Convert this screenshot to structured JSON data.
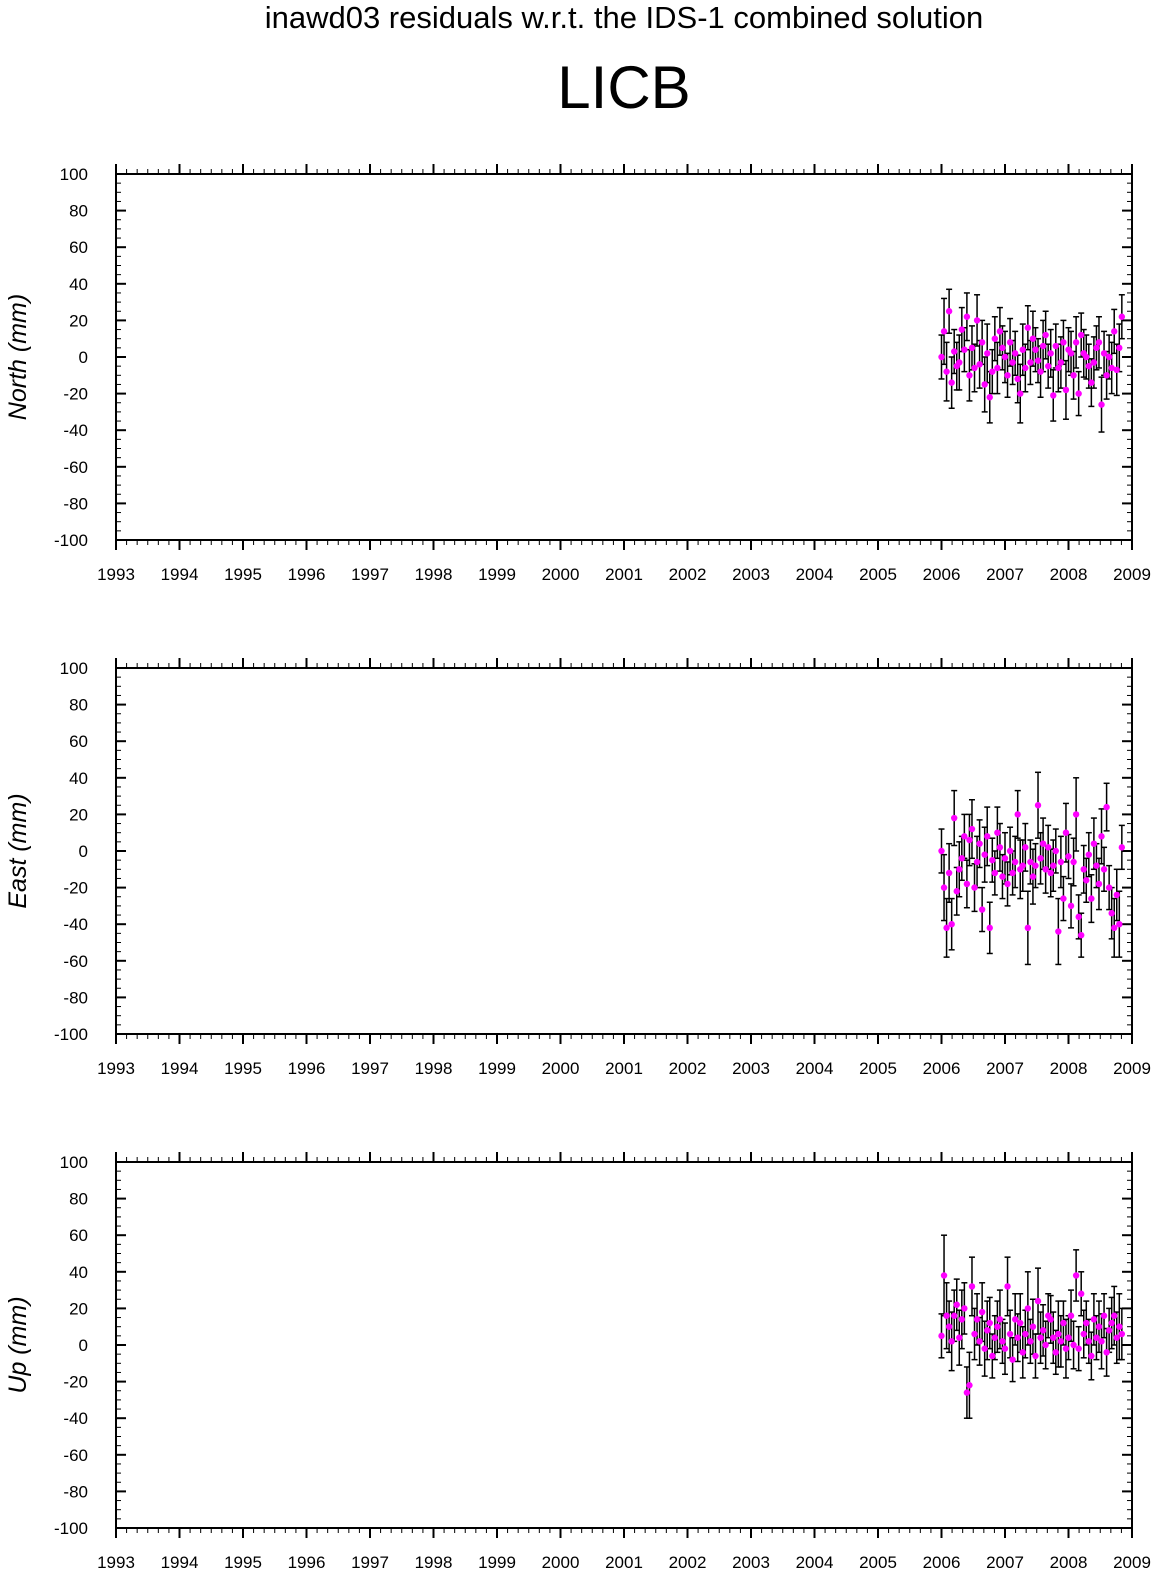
{
  "title": "inawd03 residuals w.r.t. the IDS-1 combined solution",
  "station": "LICB",
  "colors": {
    "axis": "#000000",
    "error_bar": "#000000",
    "point": "#ff00ff"
  },
  "chart_data": [
    {
      "type": "scatter",
      "title": "",
      "xlabel": "",
      "ylabel": "North (mm)",
      "xlim": [
        1993,
        2009
      ],
      "ylim": [
        -100,
        100
      ],
      "xticks": [
        "1993",
        "1994",
        "1995",
        "1996",
        "1997",
        "1998",
        "1999",
        "2000",
        "2001",
        "2002",
        "2003",
        "2004",
        "2005",
        "2006",
        "2007",
        "2008",
        "2009"
      ],
      "yticks": [
        "100",
        "80",
        "60",
        "40",
        "20",
        "0",
        "-20",
        "-40",
        "-60",
        "-80",
        "-100"
      ],
      "error_bars": true,
      "series": [
        {
          "x": [
            2006.0,
            2006.04,
            2006.08,
            2006.12,
            2006.16,
            2006.2,
            2006.24,
            2006.28,
            2006.32,
            2006.36,
            2006.4,
            2006.44,
            2006.48,
            2006.52,
            2006.56,
            2006.6,
            2006.64,
            2006.68,
            2006.72,
            2006.76,
            2006.8,
            2006.84,
            2006.88,
            2006.92,
            2006.96,
            2007.0,
            2007.04,
            2007.08,
            2007.12,
            2007.16,
            2007.2,
            2007.24,
            2007.28,
            2007.32,
            2007.36,
            2007.4,
            2007.44,
            2007.48,
            2007.52,
            2007.56,
            2007.6,
            2007.64,
            2007.68,
            2007.72,
            2007.76,
            2007.8,
            2007.84,
            2007.88,
            2007.92,
            2007.96,
            2008.0,
            2008.04,
            2008.08,
            2008.12,
            2008.16,
            2008.2,
            2008.24,
            2008.28,
            2008.32,
            2008.36,
            2008.4,
            2008.44,
            2008.48,
            2008.52,
            2008.56,
            2008.6,
            2008.64,
            2008.68,
            2008.72,
            2008.76,
            2008.8,
            2008.84
          ],
          "y": [
            0,
            14,
            -8,
            25,
            -14,
            3,
            -5,
            -3,
            15,
            4,
            22,
            -10,
            5,
            -6,
            20,
            -4,
            8,
            -15,
            2,
            -22,
            -8,
            10,
            -6,
            14,
            5,
            0,
            -10,
            8,
            -3,
            2,
            -12,
            -20,
            4,
            -6,
            16,
            -3,
            10,
            4,
            -2,
            -8,
            6,
            12,
            -5,
            2,
            -21,
            6,
            -6,
            -3,
            8,
            -18,
            4,
            2,
            -10,
            8,
            -20,
            12,
            2,
            0,
            -5,
            -14,
            -3,
            5,
            8,
            -26,
            2,
            -10,
            0,
            -6,
            14,
            -7,
            5,
            22
          ],
          "err": [
            12,
            18,
            16,
            12,
            14,
            12,
            13,
            15,
            12,
            12,
            13,
            14,
            12,
            13,
            14,
            13,
            12,
            15,
            16,
            14,
            12,
            12,
            14,
            13,
            12,
            14,
            12,
            13,
            12,
            12,
            13,
            16,
            14,
            13,
            12,
            12,
            15,
            12,
            12,
            14,
            14,
            13,
            12,
            13,
            14,
            12,
            13,
            14,
            12,
            16,
            12,
            12,
            13,
            14,
            12,
            12,
            13,
            12,
            12,
            13,
            14,
            12,
            14,
            15,
            12,
            13,
            12,
            14,
            12,
            14,
            13,
            12
          ]
        }
      ]
    },
    {
      "type": "scatter",
      "title": "",
      "xlabel": "",
      "ylabel": "East (mm)",
      "xlim": [
        1993,
        2009
      ],
      "ylim": [
        -100,
        100
      ],
      "xticks": [
        "1993",
        "1994",
        "1995",
        "1996",
        "1997",
        "1998",
        "1999",
        "2000",
        "2001",
        "2002",
        "2003",
        "2004",
        "2005",
        "2006",
        "2007",
        "2008",
        "2009"
      ],
      "yticks": [
        "100",
        "80",
        "60",
        "40",
        "20",
        "0",
        "-20",
        "-40",
        "-60",
        "-80",
        "-100"
      ],
      "error_bars": true,
      "series": [
        {
          "x": [
            2006.0,
            2006.04,
            2006.08,
            2006.12,
            2006.16,
            2006.2,
            2006.24,
            2006.28,
            2006.32,
            2006.36,
            2006.4,
            2006.44,
            2006.48,
            2006.52,
            2006.56,
            2006.6,
            2006.64,
            2006.68,
            2006.72,
            2006.76,
            2006.8,
            2006.84,
            2006.88,
            2006.92,
            2006.96,
            2007.0,
            2007.04,
            2007.08,
            2007.12,
            2007.16,
            2007.2,
            2007.24,
            2007.28,
            2007.32,
            2007.36,
            2007.4,
            2007.44,
            2007.48,
            2007.52,
            2007.56,
            2007.6,
            2007.64,
            2007.68,
            2007.72,
            2007.76,
            2007.8,
            2007.84,
            2007.88,
            2007.92,
            2007.96,
            2008.0,
            2008.04,
            2008.08,
            2008.12,
            2008.16,
            2008.2,
            2008.24,
            2008.28,
            2008.32,
            2008.36,
            2008.4,
            2008.44,
            2008.48,
            2008.52,
            2008.56,
            2008.6,
            2008.64,
            2008.68,
            2008.72,
            2008.76,
            2008.8,
            2008.84
          ],
          "y": [
            0,
            -20,
            -42,
            -12,
            -40,
            18,
            -22,
            -10,
            -4,
            8,
            -18,
            6,
            12,
            -20,
            -6,
            4,
            -32,
            -2,
            8,
            -42,
            -5,
            -12,
            10,
            2,
            -14,
            -4,
            -18,
            0,
            -12,
            -6,
            20,
            -10,
            -8,
            2,
            -42,
            -6,
            -14,
            -8,
            25,
            -4,
            4,
            -10,
            2,
            -12,
            -8,
            0,
            -44,
            -6,
            -26,
            10,
            -3,
            -30,
            -6,
            20,
            -36,
            -46,
            -10,
            -16,
            -2,
            -26,
            4,
            -8,
            -18,
            8,
            -10,
            24,
            -20,
            -34,
            -42,
            -24,
            -40,
            2
          ],
          "err": [
            12,
            18,
            16,
            16,
            14,
            15,
            13,
            15,
            12,
            12,
            13,
            14,
            16,
            13,
            14,
            13,
            12,
            15,
            16,
            14,
            12,
            12,
            14,
            13,
            12,
            14,
            12,
            13,
            12,
            14,
            13,
            16,
            14,
            13,
            20,
            12,
            15,
            12,
            18,
            14,
            14,
            13,
            12,
            13,
            14,
            12,
            18,
            14,
            12,
            16,
            12,
            12,
            13,
            20,
            12,
            12,
            13,
            12,
            12,
            13,
            14,
            12,
            14,
            15,
            12,
            13,
            12,
            14,
            16,
            14,
            18,
            12
          ]
        }
      ]
    },
    {
      "type": "scatter",
      "title": "",
      "xlabel": "",
      "ylabel": "Up (mm)",
      "xlim": [
        1993,
        2009
      ],
      "ylim": [
        -100,
        100
      ],
      "xticks": [
        "1993",
        "1994",
        "1995",
        "1996",
        "1997",
        "1998",
        "1999",
        "2000",
        "2001",
        "2002",
        "2003",
        "2004",
        "2005",
        "2006",
        "2007",
        "2008",
        "2009"
      ],
      "yticks": [
        "100",
        "80",
        "60",
        "40",
        "20",
        "0",
        "-20",
        "-40",
        "-60",
        "-80",
        "-100"
      ],
      "error_bars": true,
      "series": [
        {
          "x": [
            2006.0,
            2006.04,
            2006.08,
            2006.12,
            2006.16,
            2006.2,
            2006.24,
            2006.28,
            2006.32,
            2006.36,
            2006.4,
            2006.44,
            2006.48,
            2006.52,
            2006.56,
            2006.6,
            2006.64,
            2006.68,
            2006.72,
            2006.76,
            2006.8,
            2006.84,
            2006.88,
            2006.92,
            2006.96,
            2007.0,
            2007.04,
            2007.08,
            2007.12,
            2007.16,
            2007.2,
            2007.24,
            2007.28,
            2007.32,
            2007.36,
            2007.4,
            2007.44,
            2007.48,
            2007.52,
            2007.56,
            2007.6,
            2007.64,
            2007.68,
            2007.72,
            2007.76,
            2007.8,
            2007.84,
            2007.88,
            2007.92,
            2007.96,
            2008.0,
            2008.04,
            2008.08,
            2008.12,
            2008.16,
            2008.2,
            2008.24,
            2008.28,
            2008.32,
            2008.36,
            2008.4,
            2008.44,
            2008.48,
            2008.52,
            2008.56,
            2008.6,
            2008.64,
            2008.68,
            2008.72,
            2008.76,
            2008.8,
            2008.84
          ],
          "y": [
            5,
            38,
            16,
            10,
            2,
            16,
            22,
            4,
            14,
            20,
            -26,
            -22,
            32,
            6,
            14,
            2,
            18,
            -2,
            8,
            12,
            -6,
            4,
            10,
            14,
            2,
            -2,
            32,
            6,
            -8,
            14,
            4,
            12,
            -4,
            6,
            20,
            2,
            10,
            -6,
            24,
            4,
            8,
            0,
            16,
            14,
            4,
            -4,
            6,
            2,
            12,
            -2,
            4,
            16,
            0,
            38,
            -2,
            28,
            6,
            12,
            2,
            -6,
            14,
            4,
            10,
            2,
            16,
            -4,
            8,
            12,
            16,
            4,
            10,
            6
          ],
          "err": [
            12,
            22,
            18,
            14,
            16,
            14,
            14,
            15,
            16,
            14,
            14,
            18,
            16,
            14,
            14,
            13,
            16,
            15,
            16,
            14,
            12,
            12,
            14,
            16,
            12,
            14,
            16,
            13,
            12,
            14,
            13,
            16,
            14,
            13,
            20,
            12,
            15,
            12,
            18,
            14,
            14,
            13,
            12,
            13,
            14,
            12,
            18,
            14,
            12,
            16,
            12,
            14,
            13,
            14,
            12,
            12,
            13,
            12,
            12,
            13,
            14,
            12,
            14,
            15,
            12,
            13,
            12,
            14,
            16,
            14,
            18,
            14
          ]
        }
      ]
    }
  ]
}
